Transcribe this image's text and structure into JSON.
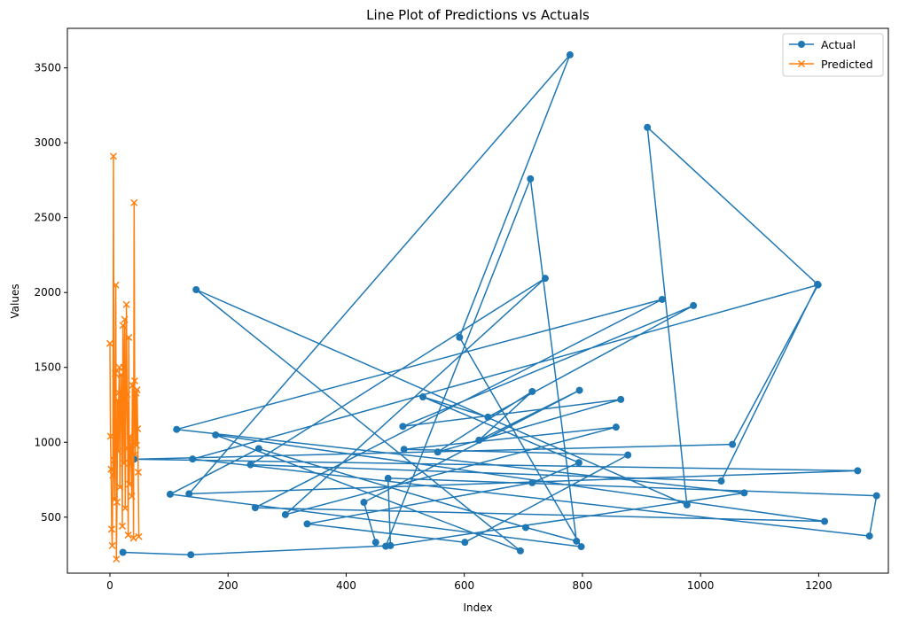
{
  "chart_data": {
    "type": "line",
    "title": "Line Plot of Predictions vs Actuals",
    "xlabel": "Index",
    "ylabel": "Values",
    "xlim": [
      -72,
      1318
    ],
    "ylim": [
      126,
      3764
    ],
    "xticks": [
      0,
      200,
      400,
      600,
      800,
      1000,
      1200
    ],
    "yticks": [
      500,
      1000,
      1500,
      2000,
      2500,
      3000,
      3500
    ],
    "grid": false,
    "legend_position": "top-right",
    "series": [
      {
        "name": "Actual",
        "color": "#1f77b4",
        "marker": "circle",
        "x": [
          22,
          137,
          475,
          471,
          1298,
          1286,
          140,
          1199,
          1054,
          41,
          1266,
          134,
          779,
          592,
          798,
          102,
          252,
          704,
          790,
          712,
          467,
          1074,
          113,
          935,
          246,
          1210,
          179,
          695,
          146,
          977,
          910,
          1198,
          1035,
          238,
          737,
          297,
          857,
          498,
          877,
          601,
          334,
          715,
          794,
          530,
          640,
          988,
          496,
          865,
          555,
          715,
          625,
          795,
          430,
          450
        ],
        "y": [
          265,
          249,
          310,
          760,
          643,
          374,
          888,
          2051,
          986,
          887,
          810,
          656,
          3587,
          1701,
          303,
          653,
          958,
          431,
          340,
          2759,
          306,
          662,
          1086,
          1954,
          563,
          472,
          1049,
          275,
          2019,
          582,
          3103,
          2055,
          741,
          850,
          2095,
          517,
          1101,
          953,
          915,
          332,
          455,
          730,
          864,
          1303,
          1168,
          1913,
          1106,
          1286,
          935,
          1339,
          1014,
          1347,
          599,
          332
        ]
      },
      {
        "name": "Predicted",
        "color": "#ff7f0e",
        "marker": "x",
        "x": [
          0,
          1,
          2,
          3,
          4,
          5,
          6,
          7,
          8,
          9,
          10,
          11,
          12,
          13,
          14,
          15,
          16,
          17,
          18,
          19,
          20,
          21,
          22,
          23,
          24,
          25,
          26,
          27,
          28,
          29,
          30,
          31,
          32,
          33,
          34,
          35,
          36,
          37,
          38,
          39,
          40,
          41,
          42,
          43,
          44,
          45,
          46,
          47,
          48,
          49
        ],
        "y": [
          1660,
          1040,
          820,
          420,
          310,
          780,
          2910,
          880,
          620,
          1460,
          2050,
          220,
          600,
          1280,
          940,
          1330,
          1500,
          700,
          1180,
          1450,
          1260,
          440,
          1780,
          1500,
          860,
          1820,
          560,
          1250,
          1920,
          1320,
          960,
          380,
          1700,
          720,
          1040,
          980,
          860,
          640,
          1380,
          1000,
          360,
          2600,
          1410,
          920,
          1330,
          980,
          1350,
          1090,
          800,
          370
        ]
      }
    ]
  }
}
